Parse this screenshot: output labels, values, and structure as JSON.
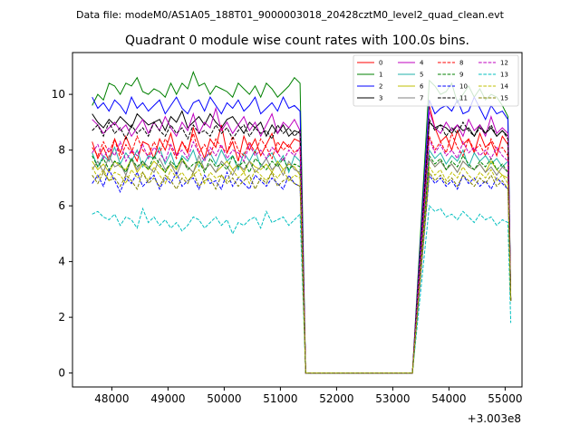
{
  "figure": {
    "suptitle": "Data file: modeM0/AS1A05_188T01_9000003018_20428cztM0_level2_quad_clean.evt"
  },
  "chart_data": {
    "type": "line",
    "title": "Quadrant 0 module wise count rates with 100.0s bins.",
    "xlabel": "",
    "ylabel": "",
    "x_offset_label": "+3.003e8",
    "xlim": [
      47300,
      55300
    ],
    "ylim": [
      -0.5,
      11.5
    ],
    "xticks": [
      48000,
      49000,
      50000,
      51000,
      52000,
      53000,
      54000,
      55000
    ],
    "yticks": [
      0,
      2,
      4,
      6,
      8,
      10
    ],
    "grid": false,
    "legend_position": "top-right",
    "legend_ncol": 4,
    "segment_starts": [
      47650,
      53650
    ],
    "segment_lengths": [
      38,
      15
    ],
    "step": 100,
    "gap_start": 51450,
    "gap_end": 53350,
    "series": [
      {
        "name": "0",
        "color": "#ff0000",
        "dash": "solid",
        "values": [
          8.3,
          7.7,
          8.1,
          7.6,
          8.4,
          7.9,
          8.5,
          8.0,
          7.6,
          8.3,
          8.2,
          7.7,
          8.4,
          8.0,
          8.6,
          7.8,
          8.3,
          7.9,
          8.8,
          8.2,
          7.7,
          8.4,
          8.1,
          8.9,
          7.9,
          8.3,
          7.6,
          8.5,
          8.0,
          8.4,
          7.8,
          8.2,
          8.6,
          7.9,
          8.3,
          8.1,
          8.4,
          8.3,
          9.6,
          8.8,
          8.3,
          8.5,
          8.0,
          8.7,
          8.2,
          8.4,
          7.9,
          8.6,
          8.1,
          8.3,
          7.8,
          8.5,
          8.2
        ]
      },
      {
        "name": "1",
        "color": "#008000",
        "dash": "solid",
        "values": [
          9.6,
          10.0,
          9.8,
          10.4,
          10.3,
          10.0,
          10.4,
          10.3,
          10.6,
          10.1,
          10.0,
          10.2,
          10.1,
          9.9,
          10.4,
          10.0,
          10.4,
          10.2,
          10.8,
          10.3,
          10.4,
          10.0,
          10.3,
          10.2,
          10.1,
          9.9,
          10.4,
          10.2,
          10.0,
          10.3,
          9.9,
          10.4,
          10.2,
          9.9,
          10.1,
          10.3,
          10.6,
          10.4,
          10.5,
          10.3,
          10.0,
          10.1,
          10.4,
          9.7,
          10.0,
          10.3,
          9.9,
          10.2,
          9.8,
          10.0,
          9.9,
          9.6,
          9.2
        ]
      },
      {
        "name": "2",
        "color": "#0000ff",
        "dash": "solid",
        "values": [
          9.9,
          9.5,
          9.7,
          9.4,
          9.8,
          9.6,
          9.3,
          9.9,
          9.5,
          9.7,
          9.4,
          9.6,
          9.8,
          9.3,
          9.6,
          9.9,
          9.5,
          9.3,
          9.7,
          9.8,
          9.4,
          9.9,
          9.6,
          9.3,
          9.7,
          9.5,
          9.8,
          9.4,
          9.6,
          9.9,
          9.3,
          9.5,
          9.7,
          9.4,
          9.9,
          9.5,
          9.6,
          9.4,
          9.8,
          9.3,
          9.5,
          9.6,
          9.4,
          9.8,
          9.3,
          9.4,
          9.9,
          9.5,
          9.1,
          9.6,
          9.3,
          9.4,
          9.1
        ]
      },
      {
        "name": "3",
        "color": "#000000",
        "dash": "solid",
        "values": [
          9.3,
          9.0,
          8.8,
          9.1,
          8.9,
          9.2,
          9.0,
          8.8,
          9.3,
          9.1,
          8.9,
          9.0,
          9.1,
          8.7,
          9.2,
          9.0,
          9.4,
          8.8,
          9.0,
          9.2,
          8.9,
          9.3,
          9.0,
          8.8,
          9.1,
          9.2,
          8.9,
          8.6,
          9.0,
          8.8,
          9.0,
          8.5,
          8.9,
          8.6,
          8.9,
          8.5,
          8.7,
          8.6,
          9.0,
          8.8,
          8.9,
          8.8,
          8.6,
          8.9,
          8.7,
          8.8,
          8.5,
          8.9,
          8.6,
          8.8,
          8.5,
          8.7,
          8.5
        ]
      },
      {
        "name": "4",
        "color": "#bf00bf",
        "dash": "solid",
        "values": [
          9.1,
          8.9,
          8.6,
          8.8,
          9.0,
          8.7,
          8.9,
          8.5,
          8.8,
          9.1,
          8.6,
          9.0,
          8.7,
          9.2,
          8.8,
          8.5,
          9.0,
          8.7,
          9.3,
          8.6,
          9.0,
          8.8,
          9.5,
          8.7,
          9.0,
          8.6,
          8.9,
          9.2,
          8.7,
          9.0,
          8.5,
          8.9,
          9.3,
          8.6,
          9.0,
          8.8,
          9.1,
          8.7,
          9.4,
          8.8,
          8.6,
          9.0,
          8.7,
          8.9,
          8.5,
          9.1,
          8.7,
          8.9,
          8.5,
          9.2,
          8.6,
          8.8,
          8.6
        ]
      },
      {
        "name": "5",
        "color": "#20b2aa",
        "dash": "solid",
        "values": [
          7.9,
          7.4,
          7.8,
          7.6,
          8.1,
          7.5,
          7.9,
          7.6,
          8.0,
          7.4,
          7.8,
          7.7,
          8.1,
          7.5,
          7.9,
          7.3,
          7.8,
          7.6,
          8.0,
          7.4,
          7.7,
          7.9,
          7.5,
          8.0,
          7.6,
          7.8,
          7.3,
          7.9,
          7.6,
          8.0,
          7.4,
          7.7,
          7.9,
          7.5,
          7.8,
          7.2,
          7.8,
          7.6,
          8.0,
          7.7,
          7.9,
          7.5,
          7.8,
          7.6,
          8.0,
          7.4,
          7.9,
          7.6,
          7.8,
          7.5,
          7.7,
          7.4,
          7.6
        ]
      },
      {
        "name": "6",
        "color": "#bfbf00",
        "dash": "solid",
        "values": [
          7.6,
          7.3,
          7.5,
          7.2,
          7.6,
          7.4,
          7.3,
          7.7,
          7.2,
          7.5,
          7.3,
          7.6,
          7.4,
          7.2,
          7.5,
          7.3,
          7.7,
          7.4,
          7.2,
          7.6,
          7.3,
          7.5,
          7.2,
          7.4,
          7.6,
          7.3,
          7.5,
          7.2,
          7.6,
          7.4,
          7.3,
          7.5,
          7.2,
          7.6,
          7.3,
          7.5,
          7.4,
          7.1,
          7.7,
          7.4,
          7.6,
          7.3,
          7.5,
          7.2,
          7.6,
          7.4,
          7.3,
          7.5,
          7.2,
          7.6,
          7.3,
          7.1,
          7.0
        ]
      },
      {
        "name": "7",
        "color": "#808080",
        "dash": "solid",
        "values": [
          7.3,
          7.6,
          7.2,
          7.8,
          7.4,
          7.5,
          7.1,
          7.7,
          7.3,
          7.6,
          7.4,
          7.2,
          7.7,
          7.3,
          7.5,
          7.1,
          7.6,
          7.4,
          7.2,
          7.8,
          7.3,
          7.5,
          7.2,
          7.6,
          7.4,
          7.1,
          7.5,
          7.3,
          7.6,
          7.2,
          7.4,
          7.7,
          7.3,
          7.5,
          7.1,
          7.6,
          7.3,
          7.2,
          7.7,
          7.4,
          7.6,
          7.3,
          7.5,
          7.2,
          7.6,
          7.4,
          7.3,
          7.5,
          7.2,
          7.4,
          7.1,
          7.4,
          7.2
        ]
      },
      {
        "name": "8",
        "color": "#ff0000",
        "dash": "dashed",
        "values": [
          8.1,
          7.8,
          8.3,
          7.9,
          8.4,
          7.7,
          8.2,
          7.9,
          8.5,
          8.0,
          7.8,
          8.3,
          7.9,
          8.4,
          8.1,
          7.7,
          8.3,
          8.0,
          8.6,
          7.9,
          8.2,
          7.8,
          8.4,
          8.1,
          7.9,
          8.5,
          8.0,
          7.8,
          8.3,
          7.9,
          8.4,
          8.1,
          7.7,
          8.3,
          8.0,
          8.2,
          7.9,
          8.1,
          8.5,
          8.0,
          8.3,
          7.9,
          8.6,
          8.1,
          7.8,
          8.4,
          8.0,
          8.2,
          7.8,
          8.4,
          8.0,
          8.1,
          7.8
        ]
      },
      {
        "name": "9",
        "color": "#008000",
        "dash": "dashed",
        "values": [
          7.8,
          7.4,
          7.7,
          7.3,
          7.6,
          7.5,
          7.2,
          7.7,
          7.4,
          7.6,
          7.3,
          7.8,
          7.5,
          7.2,
          7.6,
          7.4,
          7.7,
          7.3,
          7.5,
          7.6,
          7.2,
          7.7,
          7.4,
          7.5,
          7.3,
          7.8,
          7.4,
          7.6,
          7.2,
          7.7,
          7.5,
          7.3,
          7.6,
          7.4,
          7.7,
          7.3,
          7.5,
          7.4,
          7.8,
          7.5,
          7.7,
          7.3,
          7.6,
          7.4,
          7.8,
          7.5,
          7.3,
          7.6,
          7.4,
          7.7,
          7.3,
          7.5,
          7.2
        ]
      },
      {
        "name": "10",
        "color": "#0000ff",
        "dash": "dashed",
        "values": [
          6.8,
          7.1,
          6.7,
          7.3,
          6.9,
          6.5,
          7.0,
          6.8,
          7.2,
          6.7,
          6.9,
          7.1,
          6.6,
          7.0,
          6.8,
          7.2,
          6.7,
          6.9,
          7.0,
          6.6,
          7.1,
          6.8,
          6.9,
          6.6,
          7.2,
          6.7,
          7.0,
          6.8,
          6.6,
          7.1,
          6.9,
          6.7,
          7.0,
          6.8,
          6.6,
          7.1,
          6.8,
          6.7,
          7.1,
          6.8,
          7.0,
          6.7,
          6.9,
          6.6,
          7.1,
          6.8,
          7.0,
          6.7,
          6.9,
          6.6,
          7.0,
          6.8,
          6.6
        ]
      },
      {
        "name": "11",
        "color": "#000000",
        "dash": "dashed",
        "values": [
          8.7,
          8.9,
          8.5,
          9.0,
          8.6,
          8.8,
          8.4,
          8.9,
          8.6,
          8.8,
          8.5,
          9.0,
          8.7,
          8.5,
          8.9,
          8.6,
          8.8,
          8.4,
          8.9,
          8.6,
          8.7,
          8.5,
          8.9,
          8.6,
          8.8,
          8.4,
          8.7,
          8.9,
          8.5,
          8.8,
          8.6,
          8.7,
          8.4,
          8.9,
          8.6,
          8.8,
          8.5,
          8.7,
          9.1,
          8.7,
          8.9,
          8.5,
          8.8,
          8.6,
          9.0,
          8.7,
          8.5,
          8.8,
          8.6,
          8.9,
          8.5,
          8.7,
          8.4
        ]
      },
      {
        "name": "12",
        "color": "#bf00bf",
        "dash": "dashed",
        "values": [
          7.9,
          8.2,
          7.7,
          8.1,
          7.8,
          8.3,
          7.6,
          8.0,
          7.8,
          8.2,
          7.7,
          8.1,
          7.9,
          7.6,
          8.2,
          7.8,
          8.0,
          7.7,
          8.3,
          7.9,
          7.6,
          8.1,
          7.8,
          8.2,
          7.7,
          8.0,
          7.9,
          7.6,
          8.2,
          7.8,
          8.0,
          7.7,
          8.1,
          7.9,
          7.6,
          8.0,
          7.8,
          8.1,
          8.4,
          7.9,
          8.2,
          7.8,
          8.0,
          7.7,
          8.3,
          7.9,
          8.1,
          7.8,
          8.0,
          7.7,
          8.1,
          7.8,
          7.6
        ]
      },
      {
        "name": "13",
        "color": "#00bfbf",
        "dash": "dashed",
        "values": [
          5.7,
          5.8,
          5.6,
          5.5,
          5.7,
          5.3,
          5.6,
          5.5,
          5.2,
          5.9,
          5.4,
          5.6,
          5.3,
          5.5,
          5.2,
          5.4,
          5.1,
          5.3,
          5.6,
          5.5,
          5.2,
          5.4,
          5.6,
          5.3,
          5.5,
          5.0,
          5.4,
          5.3,
          5.5,
          5.6,
          5.2,
          5.8,
          5.4,
          5.5,
          5.6,
          5.3,
          5.5,
          5.7,
          6.0,
          5.8,
          5.9,
          5.6,
          5.7,
          5.5,
          5.8,
          5.6,
          5.4,
          5.7,
          5.5,
          5.6,
          5.3,
          5.5,
          5.4
        ]
      },
      {
        "name": "14",
        "color": "#bfbf00",
        "dash": "dashed",
        "values": [
          7.4,
          7.0,
          7.3,
          6.9,
          7.2,
          7.1,
          6.8,
          7.3,
          7.0,
          7.2,
          6.9,
          7.4,
          7.1,
          6.8,
          7.3,
          7.0,
          7.2,
          6.9,
          7.1,
          7.3,
          6.8,
          7.2,
          7.0,
          7.1,
          6.9,
          7.3,
          7.0,
          7.2,
          6.8,
          7.3,
          7.1,
          6.9,
          7.2,
          7.0,
          7.3,
          6.9,
          7.1,
          7.0,
          7.4,
          7.1,
          7.3,
          6.9,
          7.2,
          7.0,
          7.4,
          7.1,
          6.9,
          7.2,
          7.0,
          7.3,
          6.9,
          7.1,
          6.8
        ]
      },
      {
        "name": "15",
        "color": "#808000",
        "dash": "dashed",
        "values": [
          7.1,
          6.8,
          7.2,
          6.9,
          7.0,
          6.7,
          7.1,
          6.9,
          6.6,
          7.2,
          6.8,
          7.0,
          6.7,
          7.1,
          6.9,
          6.6,
          7.0,
          6.8,
          7.2,
          6.7,
          6.9,
          7.0,
          6.6,
          7.1,
          6.8,
          7.0,
          6.7,
          6.9,
          7.1,
          6.6,
          7.0,
          6.8,
          7.2,
          6.7,
          6.9,
          7.0,
          6.8,
          6.7,
          7.2,
          6.9,
          7.1,
          6.8,
          7.0,
          6.7,
          7.1,
          6.9,
          6.7,
          7.0,
          6.8,
          7.1,
          6.7,
          6.9,
          6.6
        ]
      }
    ]
  }
}
